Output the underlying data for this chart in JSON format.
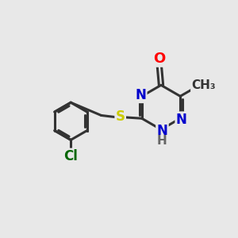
{
  "background_color": "#e8e8e8",
  "bond_color": "#333333",
  "bond_width": 2.2,
  "atom_colors": {
    "O": "#ff0000",
    "N": "#0000cc",
    "S": "#cccc00",
    "Cl": "#006600",
    "C": "#333333",
    "H": "#666666"
  },
  "font_size": 12,
  "figsize": [
    3.0,
    3.0
  ],
  "dpi": 100
}
